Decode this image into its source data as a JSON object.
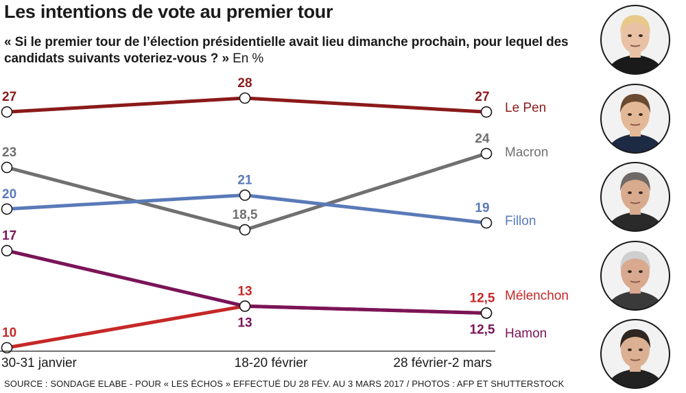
{
  "title": "Les intentions de vote au premier tour",
  "question": "« Si le premier tour de l’élection présidentielle avait lieu dimanche prochain, pour lequel des candidats suivants voteriez-vous ? »",
  "unit": "En %",
  "source": "SOURCE : SONDAGE ELABE - POUR « LES ÉCHOS » EFFECTUÉ DU 28 FÉV. AU 3 MARS 2017 / PHOTOS : AFP ET SHUTTERSTOCK",
  "chart_data": {
    "type": "line",
    "title": "Les intentions de vote au premier tour",
    "xlabel": "",
    "ylabel": "",
    "categories": [
      "30-31 janvier",
      "18-20 février",
      "28 février-2 mars"
    ],
    "ylim": [
      10,
      28
    ],
    "grid": false,
    "legend": "right",
    "series": [
      {
        "name": "Le Pen",
        "values": [
          27,
          28,
          27
        ],
        "labels": [
          "27",
          "28",
          "27"
        ],
        "color": "#8b1a1a"
      },
      {
        "name": "Macron",
        "values": [
          23,
          18.5,
          24
        ],
        "labels": [
          "23",
          "18,5",
          "24"
        ],
        "color": "#707070"
      },
      {
        "name": "Fillon",
        "values": [
          20,
          21,
          19
        ],
        "labels": [
          "20",
          "21",
          "19"
        ],
        "color": "#5a7ab8"
      },
      {
        "name": "Mélenchon",
        "values": [
          10,
          13,
          12.5
        ],
        "labels": [
          "10",
          "13",
          "12,5"
        ],
        "color": "#c62828"
      },
      {
        "name": "Hamon",
        "values": [
          17,
          13,
          12.5
        ],
        "labels": [
          "17",
          "13",
          "12,5"
        ],
        "color": "#7a1457"
      }
    ]
  },
  "portraits": [
    {
      "name": "Le Pen",
      "hair": "#e8c98a",
      "skin": "#e9c2a6",
      "clothes": "#1a1a1a"
    },
    {
      "name": "Macron",
      "hair": "#6b4a32",
      "skin": "#e3b896",
      "clothes": "#1d2a44"
    },
    {
      "name": "Fillon",
      "hair": "#6f6a66",
      "skin": "#d9ab8e",
      "clothes": "#2a2a2a"
    },
    {
      "name": "Mélenchon",
      "hair": "#cfcfcf",
      "skin": "#d8a98f",
      "clothes": "#3a3a3a"
    },
    {
      "name": "Hamon",
      "hair": "#2e2620",
      "skin": "#dcb092",
      "clothes": "#222222"
    }
  ]
}
